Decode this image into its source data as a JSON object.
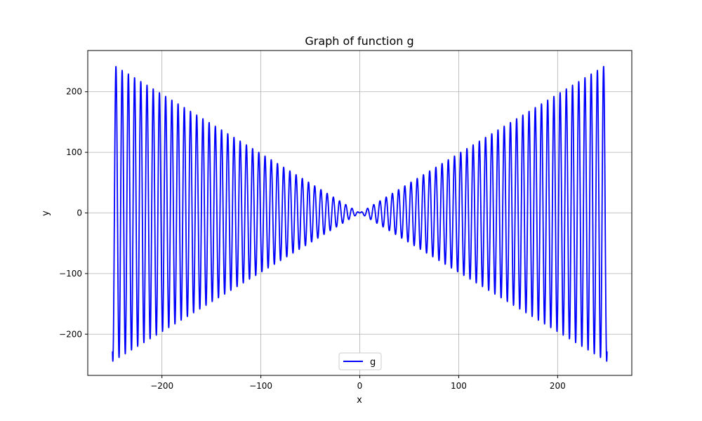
{
  "chart_data": {
    "type": "line",
    "title": "Graph of function g",
    "xlabel": "x",
    "ylabel": "y",
    "xlim": [
      -275,
      275
    ],
    "ylim": [
      -268,
      268
    ],
    "x_ticks": [
      -200,
      -100,
      0,
      100,
      200
    ],
    "y_ticks": [
      -200,
      -100,
      0,
      100,
      200
    ],
    "grid": true,
    "legend_position": "lower center",
    "series": [
      {
        "name": "g",
        "color": "#0000ff",
        "x_range": [
          -250,
          250
        ],
        "amplitude_per_unit_x": 0.98,
        "period": 6.28,
        "description_points": [
          {
            "x": -245,
            "y": 245
          },
          {
            "x": -248,
            "y": -242
          },
          {
            "x": 0,
            "y": 0
          },
          {
            "x": 245,
            "y": 245
          },
          {
            "x": 248,
            "y": -242
          }
        ]
      }
    ]
  }
}
